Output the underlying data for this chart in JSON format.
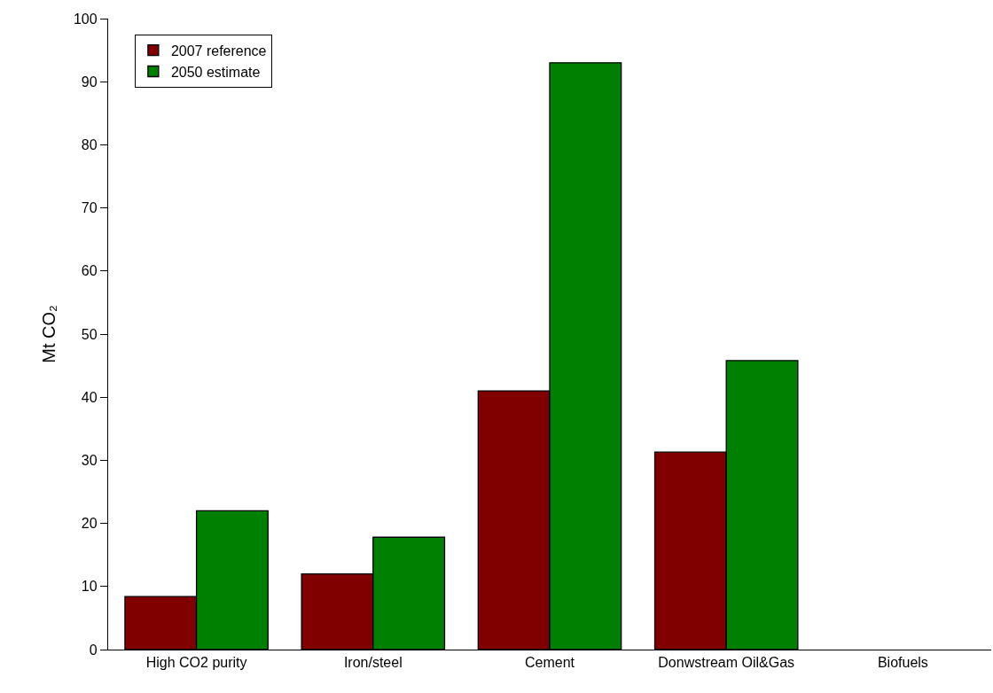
{
  "chart_data": {
    "type": "bar",
    "ylabel": "Mt CO₂",
    "categories": [
      "High CO2 purity",
      "Iron/steel",
      "Cement",
      "Donwstream Oil&Gas",
      "Biofuels"
    ],
    "series": [
      {
        "name": "2007 reference",
        "color": "#800000",
        "values": [
          8.4,
          12,
          41,
          31.3,
          null
        ]
      },
      {
        "name": "2050 estimate",
        "color": "#008000",
        "values": [
          22,
          17.8,
          93,
          45.8,
          null
        ]
      }
    ],
    "ylim": [
      0,
      100
    ],
    "yticks": [
      0,
      10,
      20,
      30,
      40,
      50,
      60,
      70,
      80,
      90,
      100
    ],
    "grid": false,
    "legend": "top left"
  }
}
